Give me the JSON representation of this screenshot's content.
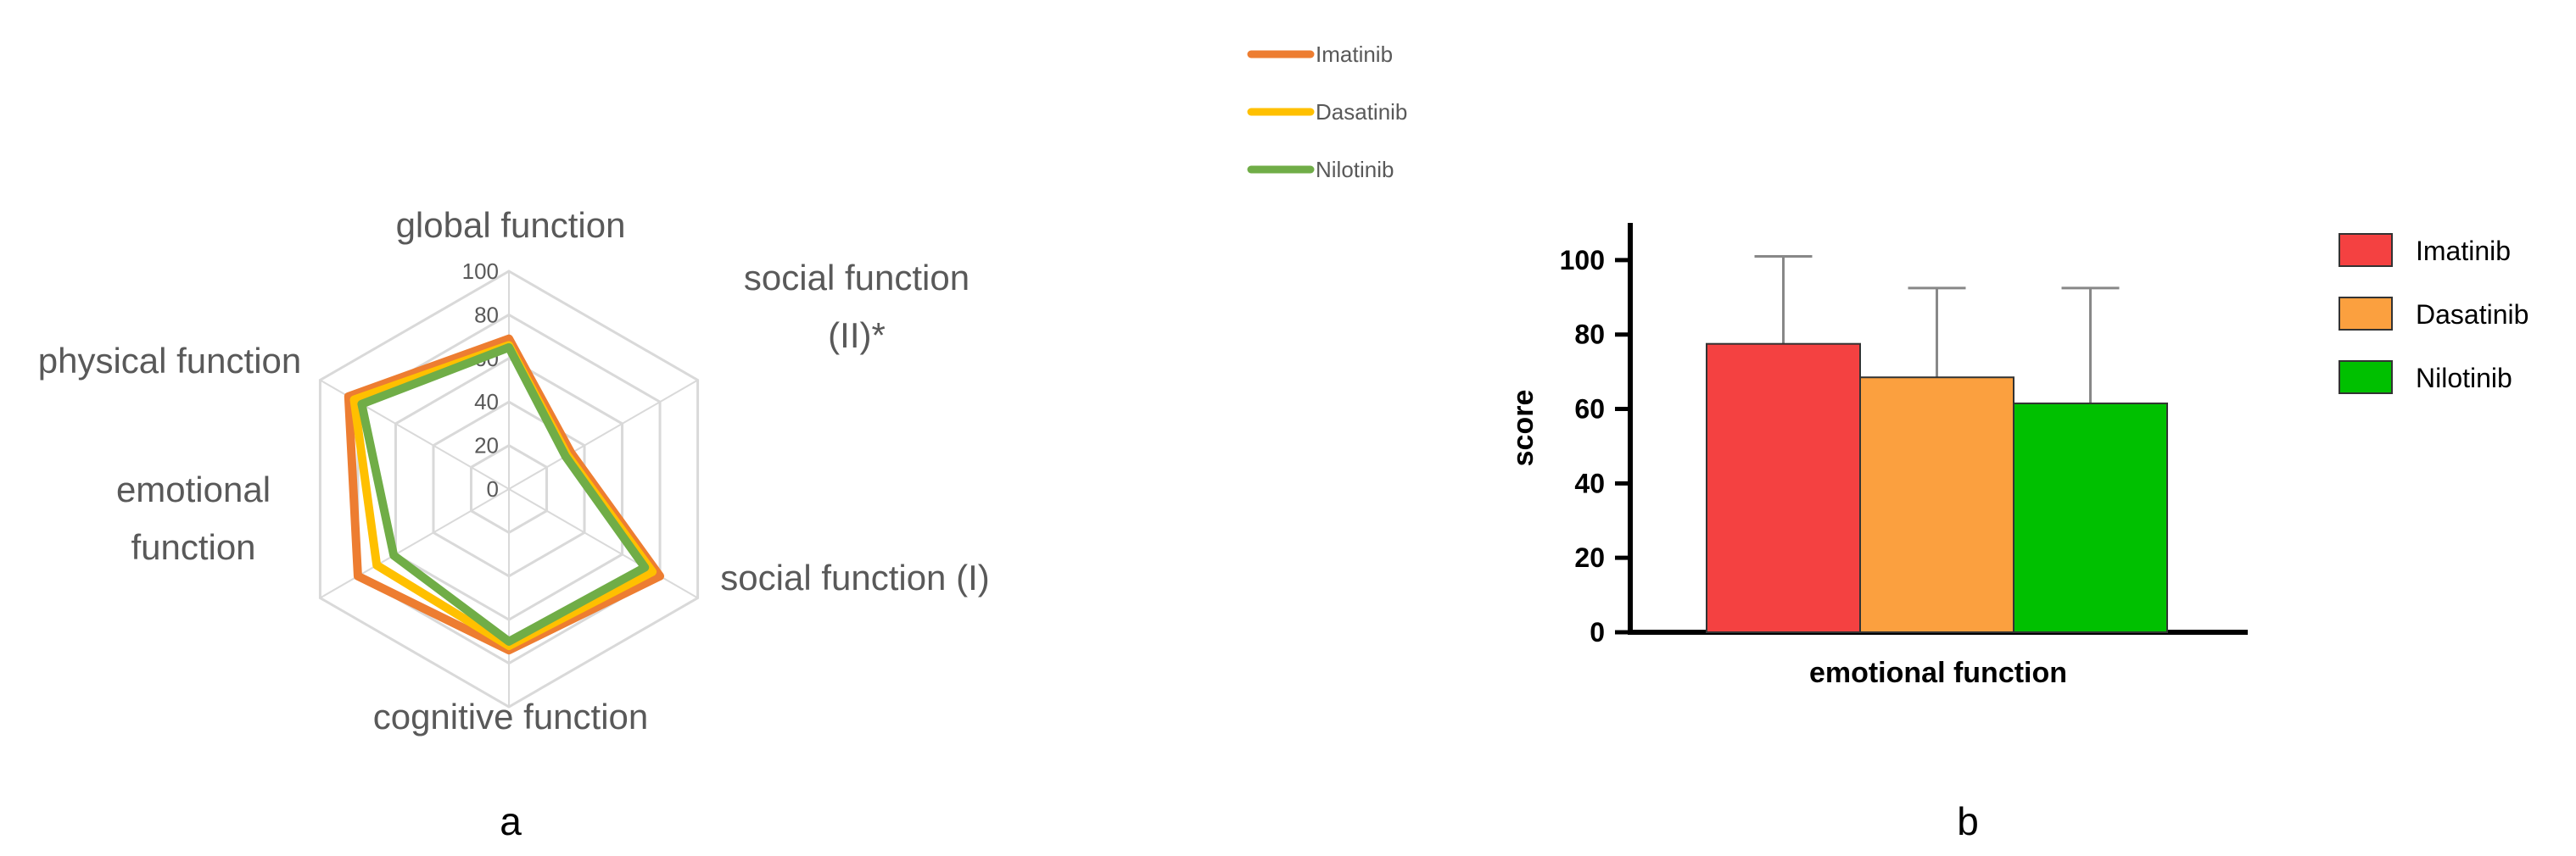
{
  "chart_data": [
    {
      "type": "radar",
      "panel_label": "a",
      "axes": [
        "global function",
        "social function (II)*",
        "social function (I)",
        "cognitive function",
        "emotional function",
        "physical function"
      ],
      "axis_label_lines": [
        [
          "global function"
        ],
        [
          "social function",
          "(II)*"
        ],
        [
          "social function (I)"
        ],
        [
          "cognitive function"
        ],
        [
          "emotional",
          "function"
        ],
        [
          "physical function"
        ]
      ],
      "r_ticks": [
        "0",
        "20",
        "40",
        "60",
        "80",
        "100"
      ],
      "rlim": [
        0,
        100
      ],
      "legend_position": "top",
      "series": [
        {
          "name": "Imatinib",
          "color": "#ED7D31",
          "values": [
            69,
            33,
            80,
            74,
            80,
            85
          ]
        },
        {
          "name": "Dasatinib",
          "color": "#FFC000",
          "values": [
            66,
            31,
            76,
            72,
            70,
            82
          ]
        },
        {
          "name": "Nilotinib",
          "color": "#70AD47",
          "values": [
            65,
            30,
            72,
            70,
            61,
            78
          ]
        }
      ]
    },
    {
      "type": "bar",
      "panel_label": "b",
      "categories": [
        "emotional function"
      ],
      "xlabel": "emotional function",
      "ylabel": "score",
      "ylim": [
        0,
        110
      ],
      "y_ticks": [
        0,
        20,
        40,
        60,
        80,
        100
      ],
      "legend_position": "right",
      "series": [
        {
          "name": "Imatinib",
          "color": "#F44141",
          "value": 77.5,
          "error_upper": 101
        },
        {
          "name": "Dasatinib",
          "color": "#FBA03F",
          "value": 68.5,
          "error_upper": 92.5
        },
        {
          "name": "Nilotinib",
          "color": "#00C000",
          "value": 61.5,
          "error_upper": 92.5
        }
      ]
    }
  ]
}
